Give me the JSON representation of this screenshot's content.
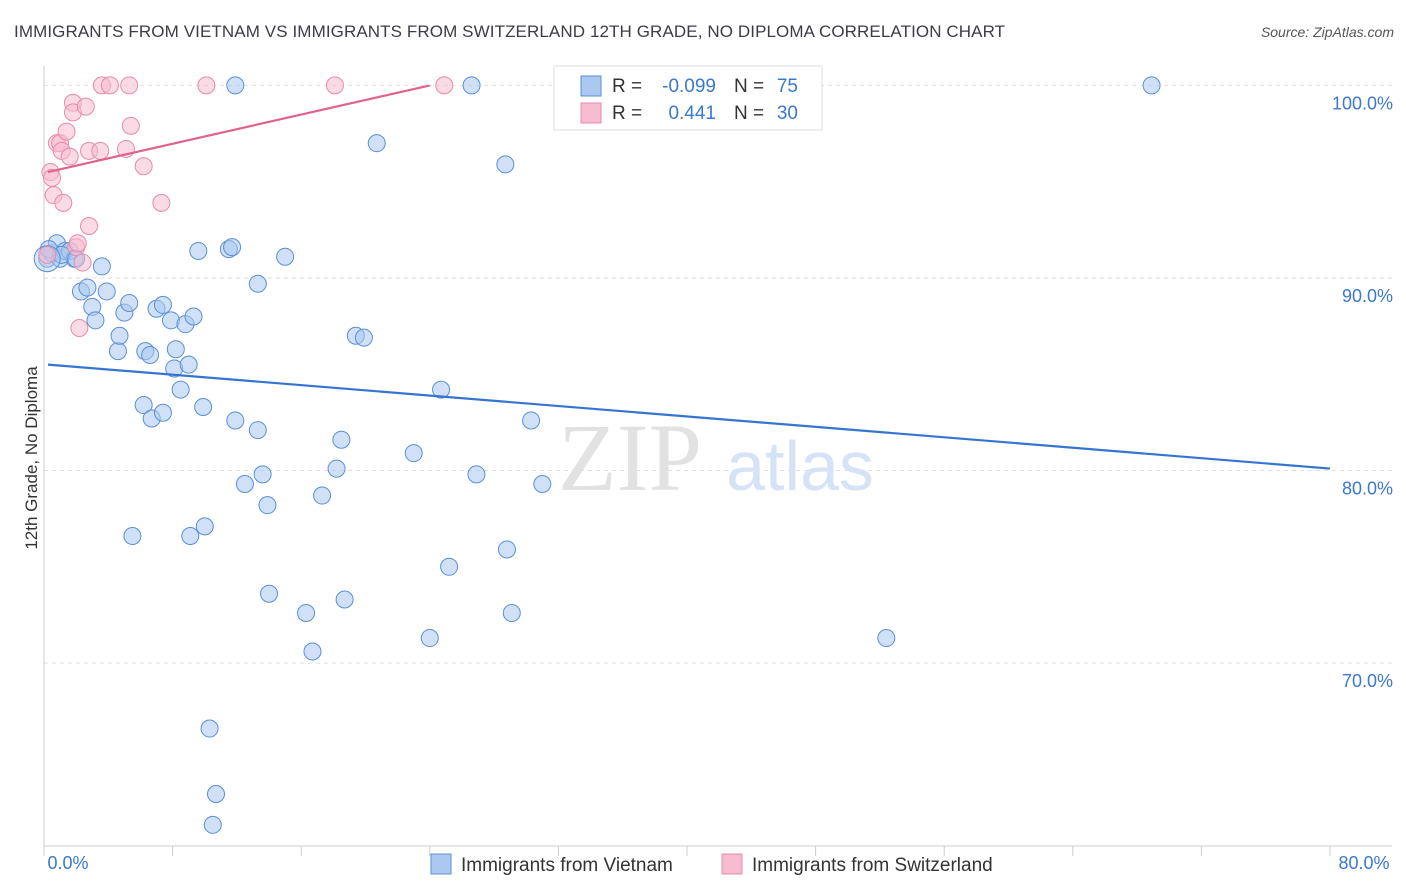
{
  "header": {
    "title": "IMMIGRANTS FROM VIETNAM VS IMMIGRANTS FROM SWITZERLAND 12TH GRADE, NO DIPLOMA CORRELATION CHART",
    "source": "Source: ZipAtlas.com"
  },
  "watermark": {
    "zip": "ZIP",
    "atlas": "atlas"
  },
  "colors": {
    "blue_fill": "#aac8f0",
    "blue_stroke": "#5b8fd6",
    "blue_line": "#3575d0",
    "pink_fill": "#f6bcd0",
    "pink_stroke": "#e98aab",
    "pink_line": "#e0638c",
    "axis_text": "#3b78d0"
  },
  "stats_box": {
    "rows": [
      {
        "r_label": "R =",
        "r_value": "-0.099",
        "n_label": "N =",
        "n_value": "75"
      },
      {
        "r_label": "R =",
        "r_value": "0.441",
        "n_label": "N =",
        "n_value": "30"
      }
    ]
  },
  "chart_data": {
    "type": "scatter",
    "title": "IMMIGRANTS FROM VIETNAM VS IMMIGRANTS FROM SWITZERLAND 12TH GRADE, NO DIPLOMA CORRELATION CHART",
    "xlabel": "",
    "ylabel": "12th Grade, No Diploma",
    "xlim": [
      0,
      80
    ],
    "ylim": [
      60.5,
      100.8
    ],
    "x_tick_labels": [
      "0.0%",
      "80.0%"
    ],
    "y_ticks": [
      100,
      90,
      80,
      70
    ],
    "y_tick_labels": [
      "100.0%",
      "90.0%",
      "80.0%",
      "70.0%"
    ],
    "grid": true,
    "legend": [
      "Immigrants from Vietnam",
      "Immigrants from Switzerland"
    ],
    "series": [
      {
        "name": "Immigrants from Vietnam",
        "r": -0.099,
        "n": 75,
        "trend": {
          "x": [
            0,
            80
          ],
          "y": [
            85.5,
            80.1
          ]
        },
        "points": [
          [
            0.2,
            91.0
          ],
          [
            0.5,
            91.3
          ],
          [
            0.8,
            91.8
          ],
          [
            1.0,
            91.0
          ],
          [
            1.3,
            91.4
          ],
          [
            1.6,
            91.4
          ],
          [
            1.9,
            91.0
          ],
          [
            2.3,
            89.3
          ],
          [
            2.7,
            89.5
          ],
          [
            3.0,
            88.5
          ],
          [
            3.2,
            87.8
          ],
          [
            3.6,
            90.6
          ],
          [
            3.9,
            89.3
          ],
          [
            4.6,
            86.2
          ],
          [
            4.7,
            87.0
          ],
          [
            5.0,
            88.2
          ],
          [
            5.3,
            88.7
          ],
          [
            6.3,
            86.2
          ],
          [
            6.6,
            86.0
          ],
          [
            6.2,
            83.4
          ],
          [
            6.7,
            82.7
          ],
          [
            7.0,
            88.4
          ],
          [
            7.4,
            88.6
          ],
          [
            7.4,
            83.0
          ],
          [
            7.9,
            87.8
          ],
          [
            8.1,
            85.3
          ],
          [
            8.2,
            86.3
          ],
          [
            8.5,
            84.2
          ],
          [
            8.8,
            87.6
          ],
          [
            9.0,
            85.5
          ],
          [
            9.3,
            88.0
          ],
          [
            9.6,
            91.4
          ],
          [
            9.9,
            83.3
          ],
          [
            10.0,
            77.1
          ],
          [
            10.3,
            66.6
          ],
          [
            10.7,
            63.2
          ],
          [
            10.5,
            61.6
          ],
          [
            11.5,
            91.5
          ],
          [
            11.7,
            91.6
          ],
          [
            11.9,
            100.0
          ],
          [
            11.9,
            82.6
          ],
          [
            12.5,
            79.3
          ],
          [
            13.3,
            89.7
          ],
          [
            13.3,
            82.1
          ],
          [
            13.6,
            79.8
          ],
          [
            13.9,
            78.2
          ],
          [
            14.0,
            73.6
          ],
          [
            15.0,
            91.1
          ],
          [
            16.3,
            72.6
          ],
          [
            16.7,
            70.6
          ],
          [
            17.3,
            78.7
          ],
          [
            18.2,
            80.1
          ],
          [
            18.5,
            81.6
          ],
          [
            18.7,
            73.3
          ],
          [
            19.4,
            87.0
          ],
          [
            19.9,
            86.9
          ],
          [
            20.7,
            97.0
          ],
          [
            23.0,
            80.9
          ],
          [
            24.0,
            71.3
          ],
          [
            24.7,
            84.2
          ],
          [
            25.2,
            75.0
          ],
          [
            26.6,
            100.0
          ],
          [
            26.9,
            79.8
          ],
          [
            28.7,
            95.9
          ],
          [
            28.8,
            75.9
          ],
          [
            29.1,
            72.6
          ],
          [
            30.3,
            82.6
          ],
          [
            31.0,
            79.3
          ],
          [
            5.5,
            76.6
          ],
          [
            9.1,
            76.6
          ],
          [
            52.4,
            71.3
          ],
          [
            68.9,
            100.0
          ],
          [
            0.3,
            91.5
          ],
          [
            1.1,
            91.2
          ],
          [
            2.0,
            91.0
          ]
        ]
      },
      {
        "name": "Immigrants from Switzerland",
        "r": 0.441,
        "n": 30,
        "trend": {
          "x": [
            0,
            24
          ],
          "y": [
            95.5,
            100.0
          ]
        },
        "points": [
          [
            0.2,
            91.2
          ],
          [
            0.4,
            95.5
          ],
          [
            0.5,
            95.2
          ],
          [
            0.6,
            94.3
          ],
          [
            0.8,
            97.0
          ],
          [
            1.0,
            97.0
          ],
          [
            1.1,
            96.6
          ],
          [
            1.2,
            93.9
          ],
          [
            1.4,
            97.6
          ],
          [
            1.6,
            96.3
          ],
          [
            1.8,
            99.1
          ],
          [
            1.8,
            98.6
          ],
          [
            2.0,
            91.6
          ],
          [
            2.1,
            91.8
          ],
          [
            2.2,
            87.4
          ],
          [
            2.4,
            90.8
          ],
          [
            2.6,
            98.9
          ],
          [
            2.8,
            92.7
          ],
          [
            2.8,
            96.6
          ],
          [
            3.5,
            96.6
          ],
          [
            3.6,
            100.0
          ],
          [
            4.1,
            100.0
          ],
          [
            5.1,
            96.7
          ],
          [
            5.3,
            100.0
          ],
          [
            5.4,
            97.9
          ],
          [
            6.2,
            95.8
          ],
          [
            7.3,
            93.9
          ],
          [
            10.1,
            100.0
          ],
          [
            18.1,
            100.0
          ],
          [
            24.9,
            100.0
          ]
        ]
      }
    ]
  }
}
